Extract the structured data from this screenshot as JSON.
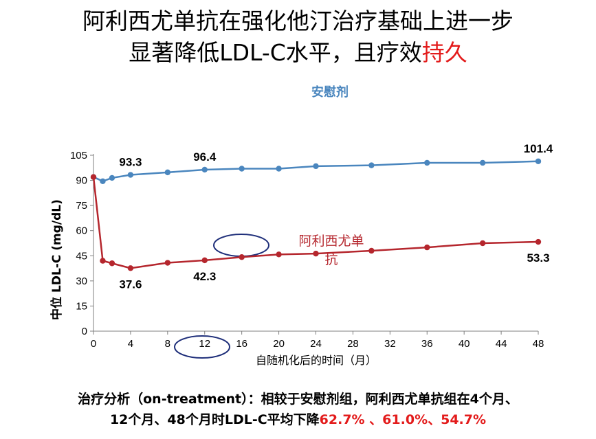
{
  "title": {
    "line1": "阿利西尤单抗在强化他汀治疗基础上进一步",
    "line2_main": "显著降低LDL-C水平，且疗效",
    "line2_accent": "持久"
  },
  "colors": {
    "placebo": "#4a86be",
    "alirocumab": "#b5262d",
    "accent_red": "#e31b1b",
    "circle": "#1f2f7a"
  },
  "chart_data": {
    "type": "line",
    "xlabel": "自随机化后的时间（月）",
    "ylabel": "中位 LDL-C (mg/dL)",
    "xlim": [
      0,
      48
    ],
    "ylim": [
      0,
      105
    ],
    "xticks": [
      0,
      4,
      8,
      12,
      16,
      20,
      24,
      28,
      32,
      36,
      40,
      44,
      48
    ],
    "yticks": [
      0,
      15,
      30,
      45,
      60,
      75,
      90,
      105
    ],
    "series": [
      {
        "name": "安慰剂",
        "x": [
          0,
          1,
          2,
          4,
          8,
          12,
          16,
          20,
          24,
          30,
          36,
          42,
          48
        ],
        "y": [
          92,
          89.5,
          91.5,
          93.3,
          94.8,
          96.4,
          97,
          97,
          98.5,
          99,
          100.5,
          100.5,
          101.4
        ]
      },
      {
        "name": "阿利西尤单抗",
        "x": [
          0,
          1,
          2,
          4,
          8,
          12,
          16,
          20,
          24,
          30,
          36,
          42,
          48
        ],
        "y": [
          92,
          42,
          40.5,
          37.6,
          40.8,
          42.3,
          44.2,
          45.8,
          46.3,
          48,
          50,
          52.5,
          53.3
        ]
      }
    ],
    "data_labels": [
      {
        "series": 0,
        "x": 4,
        "y": 93.3,
        "text": "93.3"
      },
      {
        "series": 0,
        "x": 12,
        "y": 96.4,
        "text": "96.4"
      },
      {
        "series": 0,
        "x": 48,
        "y": 101.4,
        "text": "101.4"
      },
      {
        "series": 1,
        "x": 4,
        "y": 37.6,
        "text": "37.6"
      },
      {
        "series": 1,
        "x": 12,
        "y": 42.3,
        "text": "42.3"
      },
      {
        "series": 1,
        "x": 48,
        "y": 53.3,
        "text": "53.3"
      }
    ],
    "grid": false
  },
  "bottom_note": {
    "line1": "治疗分析（on-treatment）：相较于安慰剂组，阿利西尤单抗组在4个月、",
    "line2_main": "12个月、48个月时LDL-C平均下降",
    "line2_red": "62.7% 、61.0%、54.7%"
  }
}
